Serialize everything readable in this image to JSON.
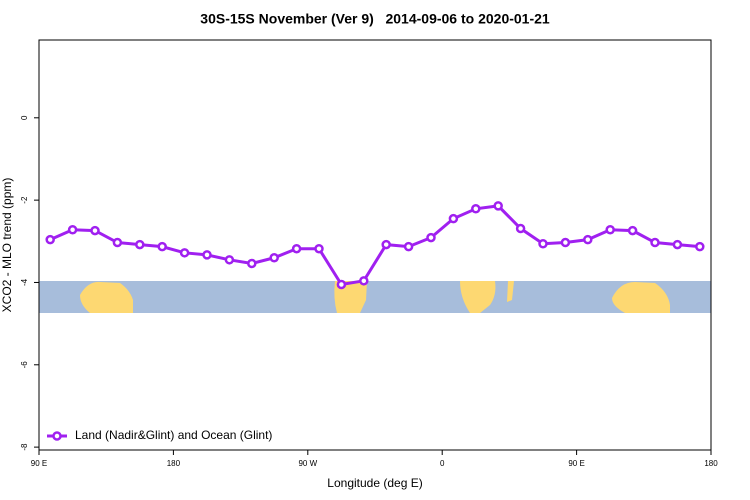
{
  "chart_data": {
    "type": "line",
    "title": "30S-15S November (Ver 9)   2014-09-06 to 2020-01-21",
    "xlabel": "Longitude (deg E)",
    "ylabel": "XCO2 - MLO trend (ppm)",
    "x": [
      97.5,
      112.5,
      127.5,
      142.5,
      157.5,
      172.5,
      187.5,
      202.5,
      217.5,
      232.5,
      247.5,
      262.5,
      277.5,
      292.5,
      307.5,
      322.5,
      337.5,
      352.5,
      367.5,
      382.5,
      397.5,
      412.5,
      427.5,
      442.5,
      457.5,
      472.5,
      487.5,
      502.5,
      517.5,
      532.5
    ],
    "series": [
      {
        "name": "Land (Nadir&Glint) and Ocean (Glint)",
        "color": "#a020f0",
        "values": [
          -2.96,
          -2.72,
          -2.74,
          -3.03,
          -3.08,
          -3.13,
          -3.28,
          -3.33,
          -3.45,
          -3.54,
          -3.4,
          -3.18,
          -3.18,
          -4.05,
          -3.96,
          -3.08,
          -3.13,
          -2.91,
          -2.45,
          -2.21,
          -2.14,
          -2.69,
          -3.06,
          -3.03,
          -2.96,
          -2.72,
          -2.74,
          -3.03,
          -3.08,
          -3.13
        ]
      }
    ],
    "xlim": [
      90,
      540
    ],
    "xticks": [
      {
        "value": 90,
        "label": "90 E"
      },
      180,
      {
        "value": 270,
        "label": "90 W"
      },
      {
        "value": 360,
        "label": "0"
      },
      {
        "value": 450,
        "label": "90 E"
      },
      {
        "value": 540,
        "label": "180"
      }
    ],
    "ylim": [
      -8.07,
      1.89
    ],
    "yticks": [
      0,
      -2,
      -4,
      -6,
      -8
    ],
    "legend": "lower left"
  }
}
